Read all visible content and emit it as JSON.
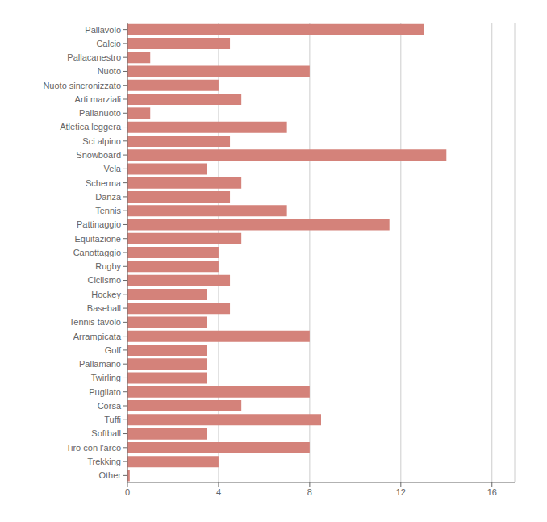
{
  "chart_data": {
    "type": "bar",
    "orientation": "horizontal",
    "categories": [
      "Pallavolo",
      "Calcio",
      "Pallacanestro",
      "Nuoto",
      "Nuoto sincronizzato",
      "Arti marziali",
      "Pallanuoto",
      "Atletica leggera",
      "Sci alpino",
      "Snowboard",
      "Vela",
      "Scherma",
      "Danza",
      "Tennis",
      "Pattinaggio",
      "Equitazione",
      "Canottaggio",
      "Rugby",
      "Ciclismo",
      "Hockey",
      "Baseball",
      "Tennis tavolo",
      "Arrampicata",
      "Golf",
      "Pallamano",
      "Twirling",
      "Pugilato",
      "Corsa",
      "Tuffi",
      "Softball",
      "Tiro con l'arco",
      "Trekking",
      "Other"
    ],
    "values": [
      13,
      4.5,
      1,
      8,
      4,
      5,
      1,
      7,
      4.5,
      14,
      3.5,
      5,
      4.5,
      7,
      11.5,
      5,
      4,
      4,
      4.5,
      3.5,
      4.5,
      3.5,
      8,
      3.5,
      3.5,
      3.5,
      8,
      5,
      8.5,
      3.5,
      8,
      4,
      0.1
    ],
    "color": "#d4827a",
    "xlim": [
      0,
      17
    ],
    "xticks": [
      0,
      4,
      8,
      12,
      16
    ],
    "grid": true
  }
}
